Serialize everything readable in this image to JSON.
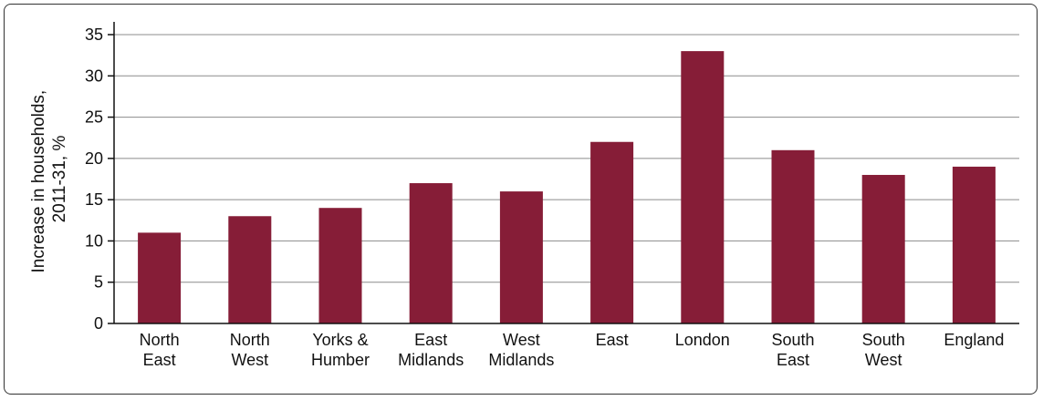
{
  "chart_data": {
    "type": "bar",
    "title": "",
    "ylabel": [
      "Increase in households,",
      "2011-31, %"
    ],
    "xlabel": "",
    "categories": [
      [
        "North",
        "East"
      ],
      [
        "North",
        "West"
      ],
      [
        "Yorks &",
        "Humber"
      ],
      [
        "East",
        "Midlands"
      ],
      [
        "West",
        "Midlands"
      ],
      [
        "East"
      ],
      [
        "London"
      ],
      [
        "South",
        "East"
      ],
      [
        "South",
        "West"
      ],
      [
        "England"
      ]
    ],
    "values": [
      11,
      13,
      14,
      17,
      16,
      22,
      33,
      21,
      18,
      19
    ],
    "ylim": [
      0,
      35
    ],
    "yticks": [
      0,
      5,
      10,
      15,
      20,
      25,
      30,
      35
    ],
    "grid": true,
    "bar_color": "#861d37",
    "grid_color": "#8c8c8c"
  }
}
